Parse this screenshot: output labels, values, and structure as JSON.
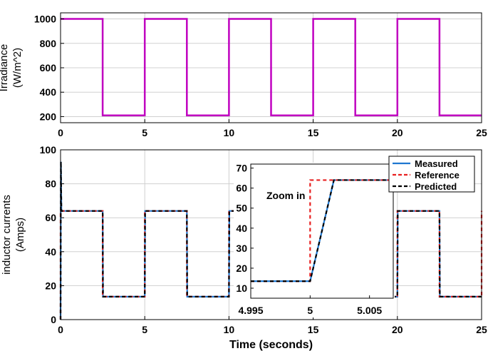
{
  "chart_data": [
    {
      "type": "line",
      "ylabel": [
        "Irradiance",
        "(W/m^2)"
      ],
      "xlabel": "",
      "xlim": [
        0,
        25
      ],
      "ylim": [
        150,
        1050
      ],
      "xticks": [
        0,
        5,
        10,
        15,
        20,
        25
      ],
      "yticks": [
        200,
        400,
        600,
        800,
        1000
      ],
      "grid": true,
      "series": [
        {
          "color": "#c000c0",
          "x": [
            0,
            2.5,
            2.5,
            5,
            5,
            7.5,
            7.5,
            10,
            10,
            12.5,
            12.5,
            15,
            15,
            17.5,
            17.5,
            20,
            20,
            22.5,
            22.5,
            25
          ],
          "y": [
            1000,
            1000,
            210,
            210,
            1000,
            1000,
            210,
            210,
            1000,
            1000,
            210,
            210,
            1000,
            1000,
            210,
            210,
            1000,
            1000,
            210,
            210
          ]
        }
      ]
    },
    {
      "type": "line",
      "ylabel": [
        "inductor currents",
        "(Amps)"
      ],
      "xlabel": "Time (seconds)",
      "xlim": [
        0,
        25
      ],
      "ylim": [
        0,
        100
      ],
      "xticks": [
        0,
        5,
        10,
        15,
        20,
        25
      ],
      "yticks": [
        0,
        20,
        40,
        60,
        80,
        100
      ],
      "grid": true,
      "legend": {
        "position": "top-right",
        "entries": [
          "Measured",
          "Reference",
          "Predicted"
        ]
      },
      "series": [
        {
          "name": "Measured",
          "color": "#1f77d0",
          "style": "solid",
          "x": [
            0,
            0.02,
            0.05,
            2.5,
            2.52,
            5,
            5.02,
            7.5,
            7.52,
            10,
            10.02,
            12.5,
            12.52,
            15,
            15.02,
            17.5,
            17.52,
            20,
            20.02,
            22.5,
            22.52,
            25
          ],
          "y": [
            0,
            93,
            64,
            64,
            13.5,
            13.5,
            64,
            64,
            13.5,
            13.5,
            64,
            64,
            13.5,
            13.5,
            64,
            64,
            13.5,
            13.5,
            64,
            64,
            13.5,
            13.5
          ]
        },
        {
          "name": "Reference",
          "color": "#e82020",
          "style": "dashed",
          "x": [
            0,
            0,
            2.5,
            2.5,
            5,
            5,
            7.5,
            7.5,
            10,
            10,
            12.5,
            12.5,
            15,
            15,
            17.5,
            17.5,
            20,
            20,
            22.5,
            22.5,
            25,
            25
          ],
          "y": [
            0,
            64,
            64,
            13.5,
            13.5,
            64,
            64,
            13.5,
            13.5,
            64,
            64,
            13.5,
            13.5,
            64,
            64,
            13.5,
            13.5,
            64,
            64,
            13.5,
            13.5,
            64
          ]
        },
        {
          "name": "Predicted",
          "color": "#000000",
          "style": "dashed",
          "x": [
            0,
            0.02,
            0.05,
            2.5,
            2.52,
            5,
            5.02,
            7.5,
            7.52,
            10,
            10.02,
            12.5,
            12.52,
            15,
            15.02,
            17.5,
            17.52,
            20,
            20.02,
            22.5,
            22.52,
            25
          ],
          "y": [
            0,
            93,
            64,
            64,
            13.5,
            13.5,
            64,
            64,
            13.5,
            13.5,
            64,
            64,
            13.5,
            13.5,
            64,
            64,
            13.5,
            13.5,
            64,
            64,
            13.5,
            13.5
          ]
        }
      ]
    },
    {
      "type": "line",
      "title": "",
      "annotation": "Zoom in",
      "xlim": [
        4.995,
        5.007
      ],
      "ylim": [
        5,
        72
      ],
      "xticks": [
        4.995,
        5,
        5.005
      ],
      "xtick_labels": [
        "4.995",
        "5",
        "5.005"
      ],
      "yticks": [
        10,
        20,
        30,
        40,
        50,
        60,
        70
      ],
      "grid": false,
      "series": [
        {
          "name": "Measured",
          "color": "#1f77d0",
          "style": "solid",
          "x": [
            4.995,
            5.0,
            5.002,
            5.007
          ],
          "y": [
            13.5,
            13.5,
            64,
            64
          ]
        },
        {
          "name": "Reference",
          "color": "#e82020",
          "style": "dashed",
          "x": [
            4.995,
            5.0,
            5.0,
            5.007
          ],
          "y": [
            13.5,
            13.5,
            64,
            64
          ]
        },
        {
          "name": "Predicted",
          "color": "#000000",
          "style": "dashed",
          "x": [
            4.995,
            5.0,
            5.002,
            5.007
          ],
          "y": [
            13.5,
            13.5,
            64,
            64
          ]
        }
      ]
    }
  ]
}
